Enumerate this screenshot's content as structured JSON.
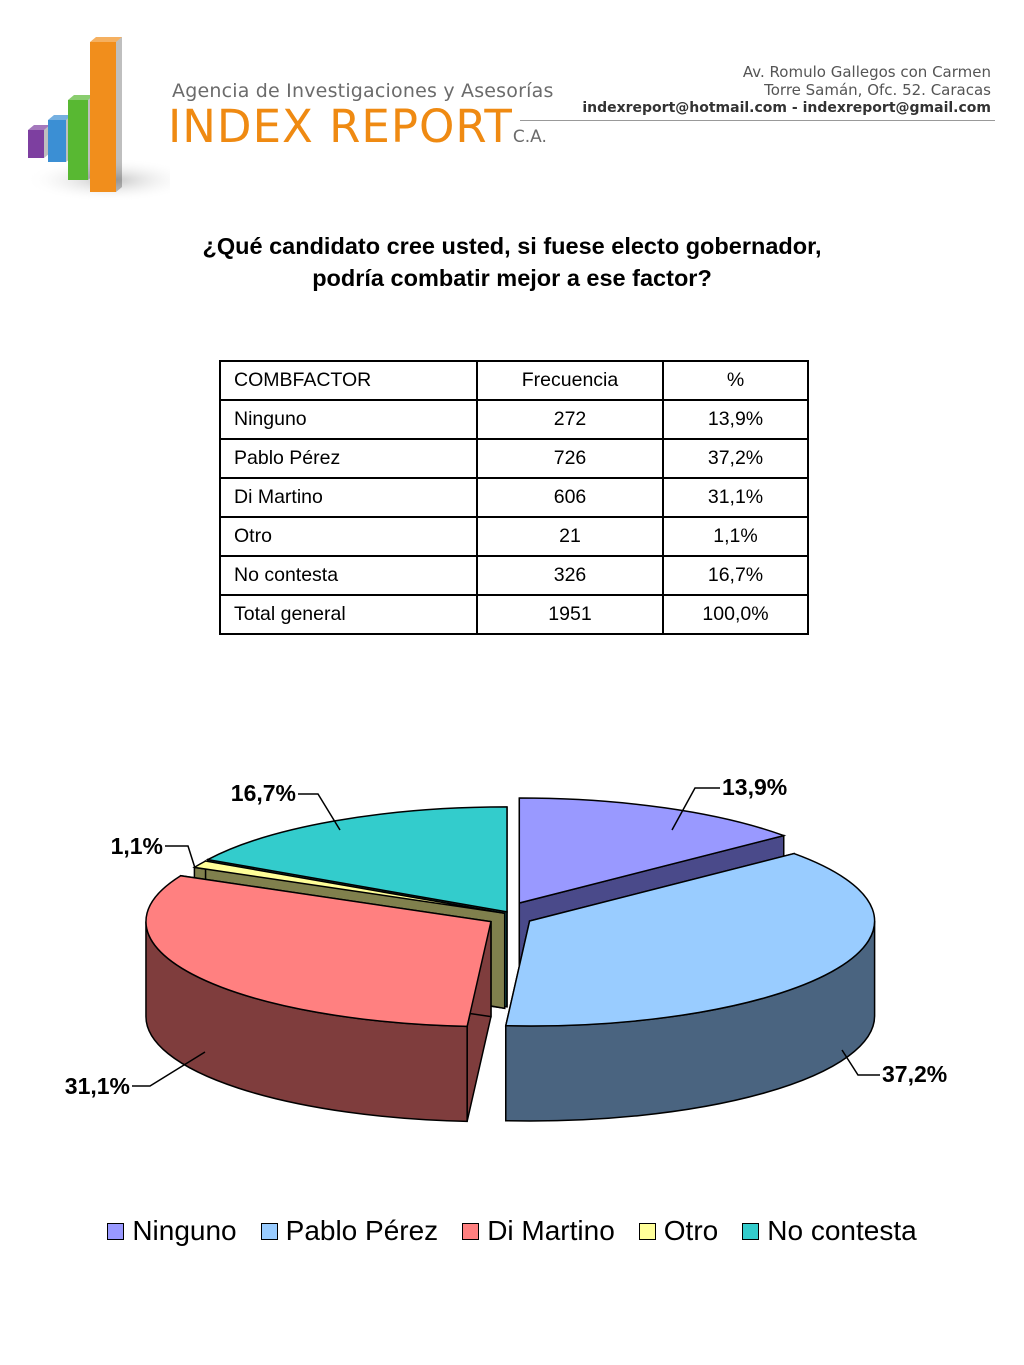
{
  "header": {
    "agency_tagline": "Agencia de Investigaciones y Asesorías",
    "company_name": "INDEX REPORT",
    "company_suffix": "C.A.",
    "address_line1": "Av. Romulo Gallegos con Carmen",
    "address_line2": "Torre Samán, Ofc. 52. Caracas",
    "emails": "indexreport@hotmail.com  -  indexreport@gmail.com",
    "logo_bar_colors": [
      "#7d3fa0",
      "#3b8fd4",
      "#58b832",
      "#f18e1c"
    ]
  },
  "question": {
    "line1": "¿Qué candidato cree usted, si fuese electo gobernador,",
    "line2": "podría combatir mejor a ese factor?"
  },
  "table": {
    "headers": [
      "COMBFACTOR",
      "Frecuencia",
      "%"
    ],
    "rows": [
      [
        "Ninguno",
        "272",
        "13,9%"
      ],
      [
        "Pablo Pérez",
        "726",
        "37,2%"
      ],
      [
        "Di Martino",
        "606",
        "31,1%"
      ],
      [
        "Otro",
        "21",
        "1,1%"
      ],
      [
        "No contesta",
        "326",
        "16,7%"
      ],
      [
        "Total general",
        "1951",
        "100,0%"
      ]
    ]
  },
  "chart_data": {
    "type": "pie",
    "style": "3d-exploded",
    "categories": [
      "Ninguno",
      "Pablo Pérez",
      "Di Martino",
      "Otro",
      "No contesta"
    ],
    "values": [
      13.9,
      37.2,
      31.1,
      1.1,
      16.7
    ],
    "labels": [
      "13,9%",
      "37,2%",
      "31,1%",
      "1,1%",
      "16,7%"
    ],
    "colors": [
      "#9999ff",
      "#99ccff",
      "#ff8080",
      "#ffff99",
      "#33cccc"
    ],
    "side_colors": [
      "#4a4a8a",
      "#4a6480",
      "#7f3d3d",
      "#80804d",
      "#1a6666"
    ],
    "legend_position": "bottom"
  }
}
